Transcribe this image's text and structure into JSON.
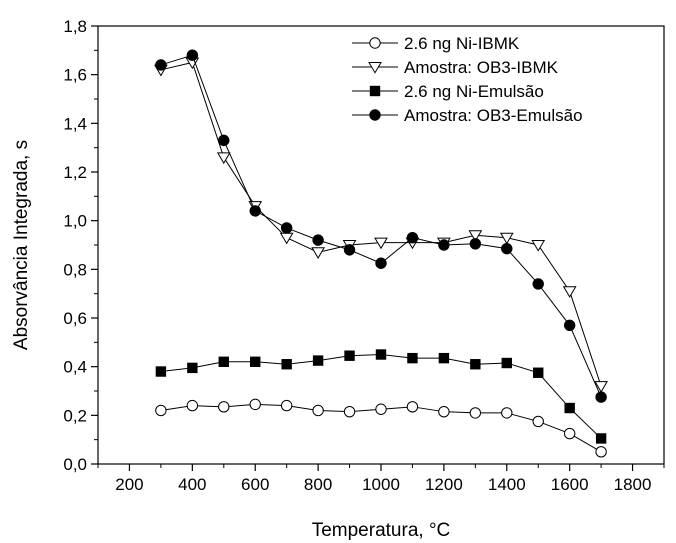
{
  "chart_data": {
    "type": "line",
    "xlabel": "Temperatura, °C",
    "ylabel": "Absorvância Integrada, s",
    "xlim": [
      100,
      1900
    ],
    "ylim": [
      0.0,
      1.8
    ],
    "x_ticks": [
      200,
      400,
      600,
      800,
      1000,
      1200,
      1400,
      1600,
      1800
    ],
    "y_ticks": [
      0.0,
      0.2,
      0.4,
      0.6,
      0.8,
      1.0,
      1.2,
      1.4,
      1.6,
      1.8
    ],
    "x_tick_labels": [
      "200",
      "400",
      "600",
      "800",
      "1000",
      "1200",
      "1400",
      "1600",
      "1800"
    ],
    "y_tick_labels": [
      "0,0",
      "0,2",
      "0,4",
      "0,6",
      "0,8",
      "1,0",
      "1,2",
      "1,4",
      "1,6",
      "1,8"
    ],
    "grid": false,
    "legend_position": "top-right",
    "series": [
      {
        "name": "2.6 ng Ni-IBMK",
        "marker": "circle-open",
        "x": [
          300,
          400,
          500,
          600,
          700,
          800,
          900,
          1000,
          1100,
          1200,
          1300,
          1400,
          1500,
          1600,
          1700
        ],
        "values": [
          0.22,
          0.24,
          0.235,
          0.245,
          0.24,
          0.22,
          0.215,
          0.225,
          0.235,
          0.215,
          0.21,
          0.21,
          0.175,
          0.125,
          0.05
        ]
      },
      {
        "name": "Amostra: OB3-IBMK",
        "marker": "triangle-down-open",
        "x": [
          300,
          400,
          500,
          600,
          700,
          800,
          900,
          1000,
          1100,
          1200,
          1300,
          1400,
          1500,
          1600,
          1700
        ],
        "values": [
          1.62,
          1.65,
          1.26,
          1.06,
          0.93,
          0.87,
          0.9,
          0.91,
          0.91,
          0.91,
          0.94,
          0.93,
          0.9,
          0.71,
          0.32
        ]
      },
      {
        "name": "2.6 ng Ni-Emulsão",
        "marker": "square-filled",
        "x": [
          300,
          400,
          500,
          600,
          700,
          800,
          900,
          1000,
          1100,
          1200,
          1300,
          1400,
          1500,
          1600,
          1700
        ],
        "values": [
          0.38,
          0.395,
          0.42,
          0.42,
          0.41,
          0.425,
          0.445,
          0.45,
          0.435,
          0.435,
          0.41,
          0.415,
          0.375,
          0.23,
          0.105
        ]
      },
      {
        "name": "Amostra: OB3-Emulsão",
        "marker": "circle-filled",
        "x": [
          300,
          400,
          500,
          600,
          700,
          800,
          900,
          1000,
          1100,
          1200,
          1300,
          1400,
          1500,
          1600,
          1700
        ],
        "values": [
          1.64,
          1.68,
          1.33,
          1.04,
          0.97,
          0.92,
          0.88,
          0.825,
          0.93,
          0.9,
          0.905,
          0.885,
          0.74,
          0.57,
          0.275
        ]
      }
    ]
  }
}
